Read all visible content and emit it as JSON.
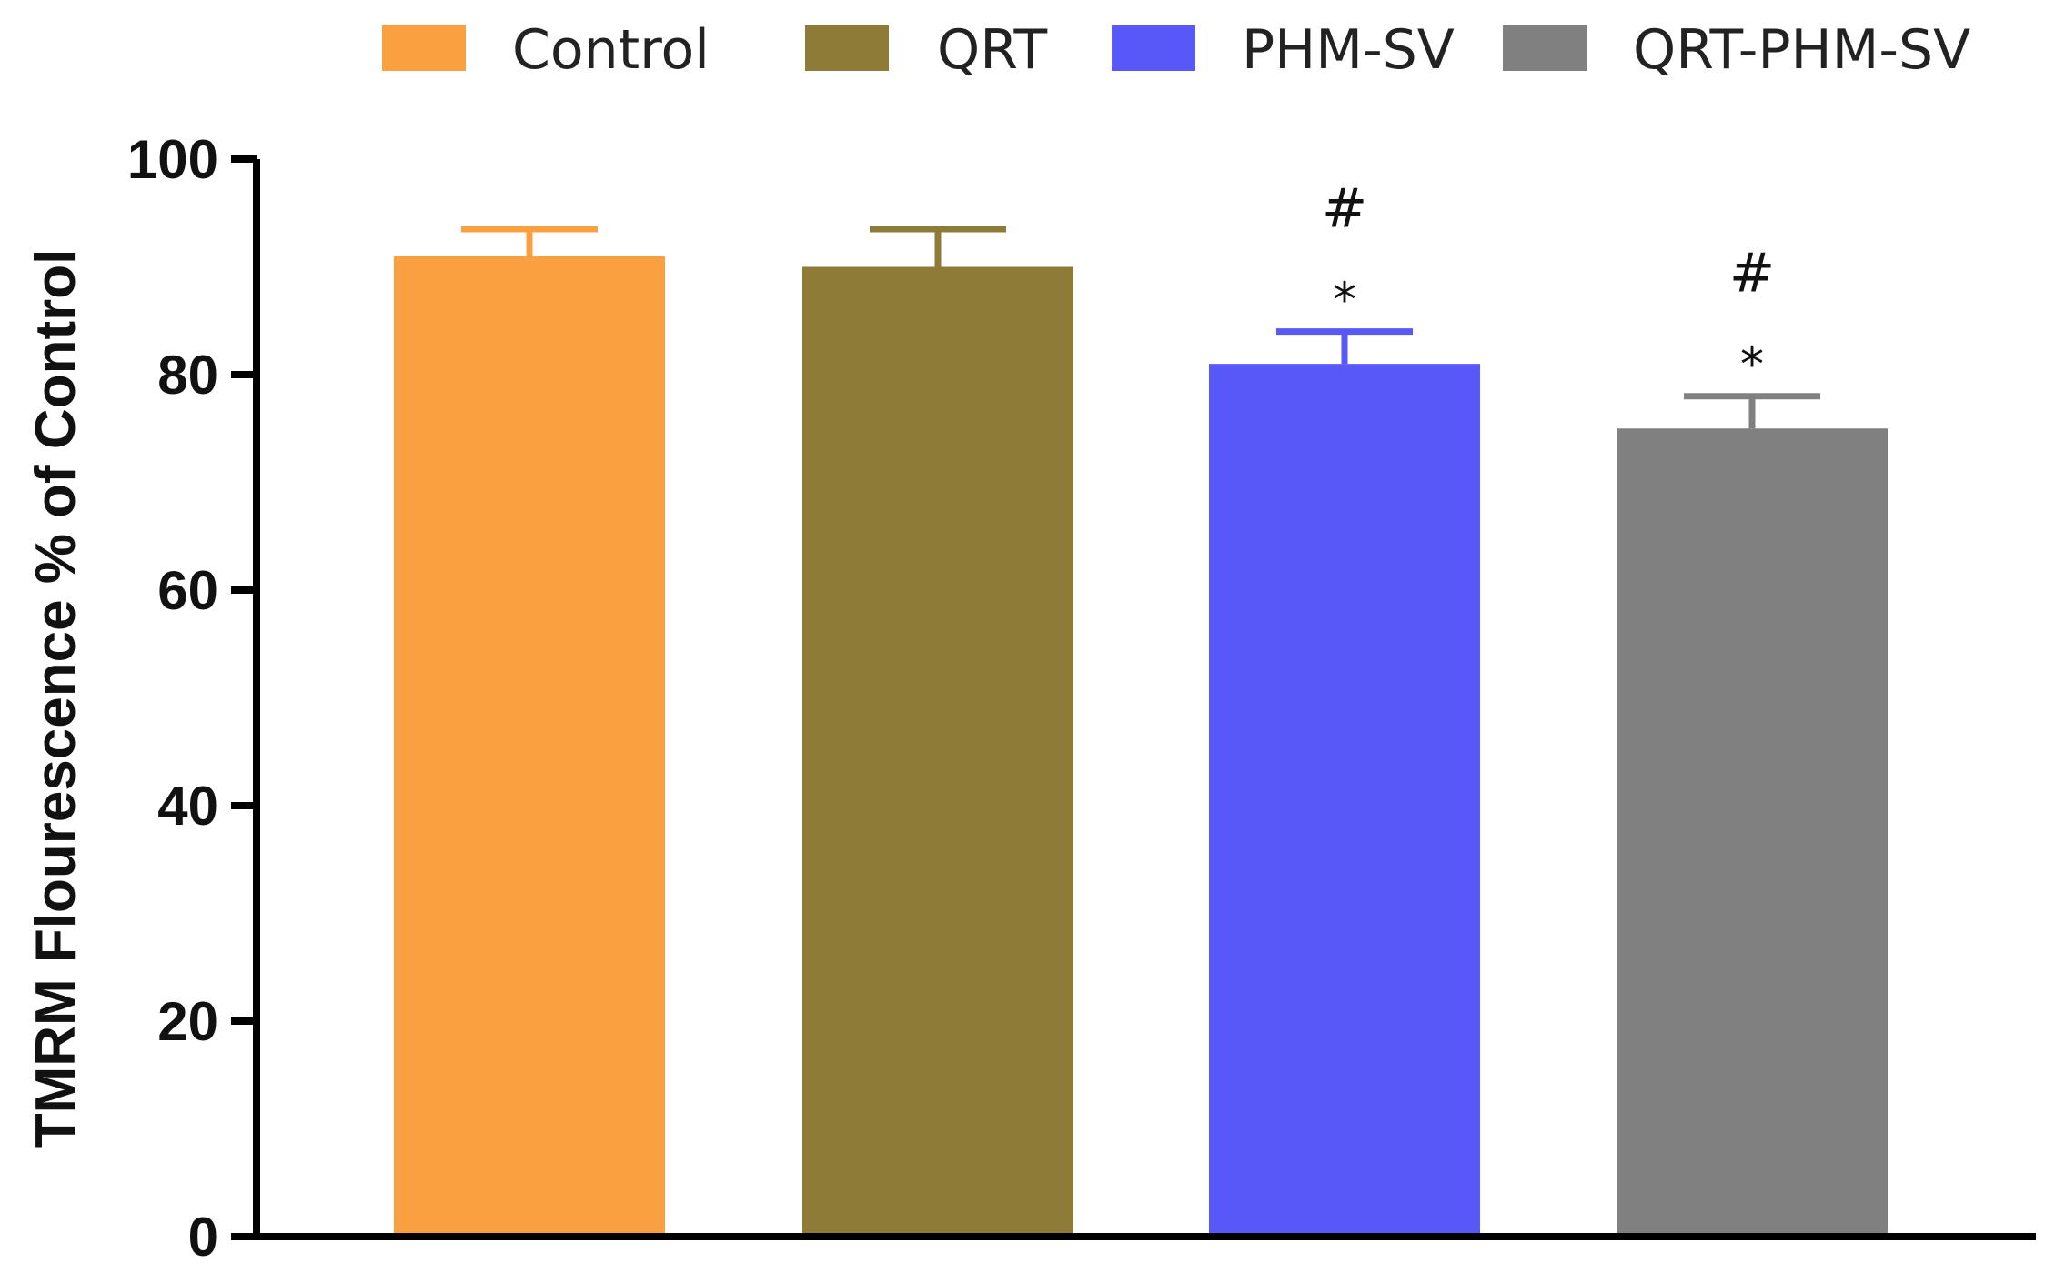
{
  "chart_data": {
    "type": "bar",
    "title": "",
    "xlabel": "",
    "ylabel": "TMRM Flourescence % of Control",
    "ylim": [
      0,
      100
    ],
    "yticks": [
      0,
      20,
      40,
      60,
      80,
      100
    ],
    "grid": false,
    "legend_position": "top",
    "categories": [
      "Control",
      "QRT",
      "PHM-SV",
      "QRT-PHM-SV"
    ],
    "values": [
      91,
      90,
      81,
      75
    ],
    "errors": [
      2.5,
      3.5,
      3,
      3
    ],
    "colors": [
      "#FBA040",
      "#8F7B38",
      "#5858F8",
      "#808080"
    ],
    "annotations": [
      {
        "category": "PHM-SV",
        "symbols": [
          "#",
          "*"
        ]
      },
      {
        "category": "QRT-PHM-SV",
        "symbols": [
          "#",
          "*"
        ]
      }
    ]
  }
}
